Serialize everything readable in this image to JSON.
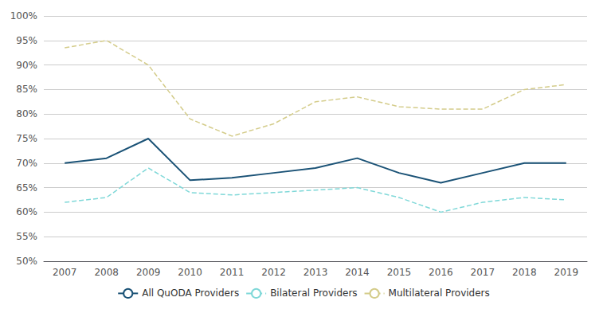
{
  "chart_data": {
    "type": "line",
    "categories": [
      "2007",
      "2008",
      "2009",
      "2010",
      "2011",
      "2012",
      "2013",
      "2014",
      "2015",
      "2016",
      "2017",
      "2018",
      "2019"
    ],
    "series": [
      {
        "name": "All QuODA Providers",
        "color": "#1a5276",
        "line_style": "solid",
        "values": [
          70,
          71,
          75,
          66.5,
          67,
          68,
          69,
          71,
          68,
          66,
          68,
          70,
          70
        ]
      },
      {
        "name": "Bilateral Providers",
        "color": "#7fd8d8",
        "line_style": "dashed",
        "values": [
          62,
          63,
          69,
          64,
          63.5,
          64,
          64.5,
          65,
          63,
          60,
          62,
          63,
          62.5
        ]
      },
      {
        "name": "Multilateral Providers",
        "color": "#d4cc8a",
        "line_style": "dashed",
        "values": [
          93.5,
          95,
          90,
          79,
          75.5,
          78,
          82.5,
          83.5,
          81.5,
          81,
          81,
          85,
          86
        ]
      }
    ],
    "ylim": [
      50,
      100
    ],
    "yticks": [
      {
        "value": 50,
        "label": "50%"
      },
      {
        "value": 55,
        "label": "55%"
      },
      {
        "value": 60,
        "label": "60%"
      },
      {
        "value": 65,
        "label": "65%"
      },
      {
        "value": 70,
        "label": "70%"
      },
      {
        "value": 75,
        "label": "75%"
      },
      {
        "value": 80,
        "label": "80%"
      },
      {
        "value": 85,
        "label": "85%"
      },
      {
        "value": 90,
        "label": "90%"
      },
      {
        "value": 95,
        "label": "95%"
      },
      {
        "value": 100,
        "label": "100%"
      }
    ],
    "grid": true,
    "legend": "bottom"
  }
}
